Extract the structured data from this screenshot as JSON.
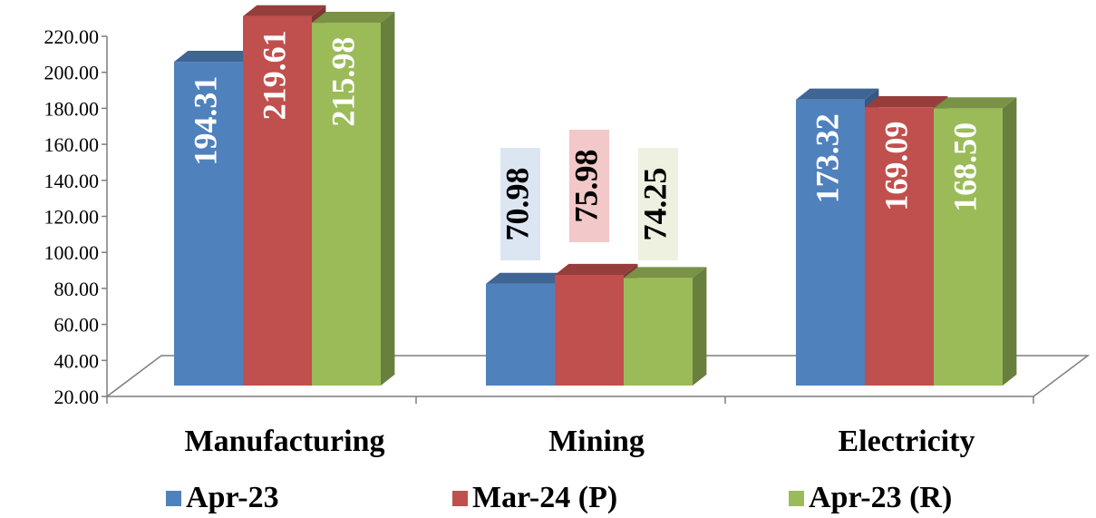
{
  "chart_data": {
    "type": "bar",
    "categories": [
      "Manufacturing",
      "Mining",
      "Electricity"
    ],
    "series": [
      {
        "name": "Apr-23",
        "values": [
          194.31,
          70.98,
          173.32
        ],
        "color": "#4F81BD"
      },
      {
        "name": "Mar-24 (P)",
        "values": [
          219.61,
          75.98,
          169.09
        ],
        "color": "#C0504D"
      },
      {
        "name": "Apr-23 (R)",
        "values": [
          215.98,
          74.25,
          168.5
        ],
        "color": "#9BBB59"
      }
    ],
    "y_ticks": [
      "20.00",
      "40.00",
      "60.00",
      "80.00",
      "100.00",
      "120.00",
      "140.00",
      "160.00",
      "180.00",
      "200.00",
      "220.00"
    ],
    "ylim": [
      20,
      220
    ],
    "title": "",
    "xlabel": "",
    "ylabel": "",
    "style": "3d-clustered-column",
    "grid": false,
    "legend_position": "bottom"
  }
}
